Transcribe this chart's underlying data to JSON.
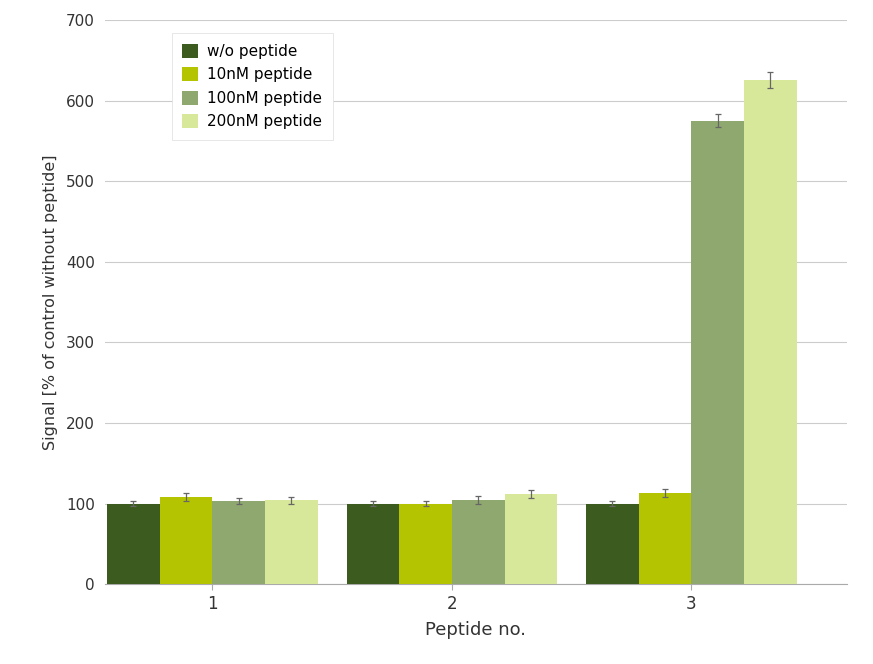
{
  "groups": [
    "1",
    "2",
    "3"
  ],
  "series_labels": [
    "w/o peptide",
    "10nM peptide",
    "100nM peptide",
    "200nM peptide"
  ],
  "colors": [
    "#3b5c1e",
    "#b5c400",
    "#8fa870",
    "#d8e89a"
  ],
  "values": [
    [
      100,
      108,
      103,
      104
    ],
    [
      100,
      100,
      104,
      112
    ],
    [
      100,
      113,
      575,
      625
    ]
  ],
  "errors": [
    [
      3,
      5,
      4,
      4
    ],
    [
      3,
      3,
      5,
      5
    ],
    [
      3,
      5,
      8,
      10
    ]
  ],
  "xlabel": "Peptide no.",
  "ylabel": "Signal [% of control without peptide]",
  "ylim": [
    0,
    700
  ],
  "yticks": [
    0,
    100,
    200,
    300,
    400,
    500,
    600,
    700
  ],
  "background_color": "#ffffff",
  "grid_color": "#cccccc",
  "bar_width": 0.22,
  "group_centers": [
    1.0,
    2.0,
    3.0
  ]
}
